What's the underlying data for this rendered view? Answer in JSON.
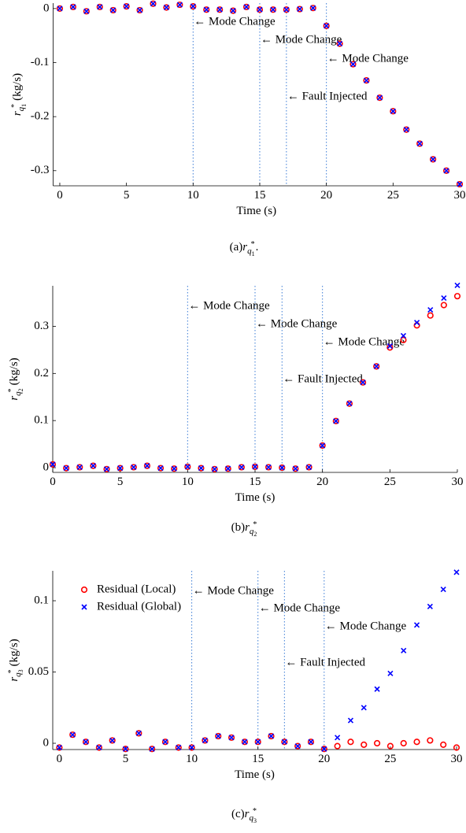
{
  "chart_data": [
    {
      "type": "scatter",
      "x": [
        0,
        1,
        2,
        3,
        4,
        5,
        6,
        7,
        8,
        9,
        10,
        11,
        12,
        13,
        14,
        15,
        16,
        17,
        18,
        19,
        20,
        21,
        22,
        23,
        24,
        25,
        26,
        27,
        28,
        29,
        30
      ],
      "series": [
        {
          "color": "#ff0000",
          "marker": "o",
          "values": [
            0,
            0.003,
            -0.005,
            0.003,
            -0.003,
            0.004,
            -0.003,
            0.009,
            0.002,
            0.007,
            0.004,
            -0.002,
            -0.002,
            -0.004,
            0.003,
            -0.002,
            -0.002,
            -0.002,
            -0.001,
            0.001,
            -0.032,
            -0.065,
            -0.103,
            -0.133,
            -0.165,
            -0.19,
            -0.224,
            -0.25,
            -0.279,
            -0.3,
            -0.325
          ]
        },
        {
          "color": "#0000ff",
          "marker": "x",
          "values": [
            0,
            0.003,
            -0.005,
            0.003,
            -0.003,
            0.004,
            -0.003,
            0.009,
            0.002,
            0.007,
            0.004,
            -0.002,
            -0.002,
            -0.004,
            0.003,
            -0.002,
            -0.002,
            -0.002,
            -0.001,
            0.001,
            -0.032,
            -0.065,
            -0.103,
            -0.133,
            -0.165,
            -0.19,
            -0.224,
            -0.25,
            -0.279,
            -0.3,
            -0.325
          ]
        }
      ],
      "xlim": [
        -0.5,
        30
      ],
      "ylim": [
        -0.328,
        0.01
      ],
      "xticks": [
        0,
        5,
        10,
        15,
        20,
        25,
        30
      ],
      "yticks": [
        0,
        -0.1,
        -0.2,
        -0.3
      ],
      "xlabel": "Time (s)",
      "ylabel": {
        "symbol": "r",
        "sub": "q",
        "index": "1",
        "sup": "*",
        "unit": "(kg/s)"
      },
      "caption": {
        "prefix": "(a)",
        "symbol": "r",
        "sub": "q",
        "index": "1",
        "sup": "*",
        "suffix": "."
      },
      "vlines": [
        10,
        15,
        17,
        20
      ],
      "vline_color": "#3a7bd5",
      "annotations": [
        "← Mode Change",
        "← Mode Change",
        "← Fault Injected",
        "← Mode Change"
      ]
    },
    {
      "type": "scatter",
      "x": [
        0,
        1,
        2,
        3,
        4,
        5,
        6,
        7,
        8,
        9,
        10,
        11,
        12,
        13,
        14,
        15,
        16,
        17,
        18,
        19,
        20,
        21,
        22,
        23,
        24,
        25,
        26,
        27,
        28,
        29,
        30
      ],
      "series": [
        {
          "color": "#ff0000",
          "marker": "o",
          "values": [
            0.007,
            -0.001,
            0.001,
            0.004,
            -0.003,
            -0.001,
            0.001,
            0.004,
            -0.001,
            -0.002,
            0.002,
            -0.001,
            -0.003,
            -0.002,
            0.001,
            0.002,
            0.001,
            0,
            -0.002,
            0.001,
            0.047,
            0.099,
            0.136,
            0.181,
            0.215,
            0.255,
            0.271,
            0.302,
            0.323,
            0.345,
            0.364
          ]
        },
        {
          "color": "#0000ff",
          "marker": "x",
          "values": [
            0.007,
            -0.001,
            0.001,
            0.004,
            -0.003,
            -0.001,
            0.001,
            0.004,
            -0.001,
            -0.002,
            0.002,
            -0.001,
            -0.003,
            -0.002,
            0.001,
            0.002,
            0.001,
            0,
            -0.002,
            0.001,
            0.047,
            0.099,
            0.136,
            0.181,
            0.215,
            0.258,
            0.28,
            0.308,
            0.335,
            0.36,
            0.387
          ]
        }
      ],
      "xlim": [
        0,
        30
      ],
      "ylim": [
        -0.01,
        0.386
      ],
      "xticks": [
        0,
        5,
        10,
        15,
        20,
        25,
        30
      ],
      "yticks": [
        0,
        0.1,
        0.2,
        0.3
      ],
      "xlabel": "Time (s)",
      "ylabel": {
        "symbol": "r",
        "sub": "q",
        "index": "2",
        "sup": "*",
        "unit": "(kg/s)"
      },
      "caption": {
        "prefix": "(b)",
        "symbol": "r",
        "sub": "q",
        "index": "2",
        "sup": "*"
      },
      "vlines": [
        10,
        15,
        17,
        20
      ],
      "vline_color": "#3a7bd5",
      "annotations": [
        "← Mode Change",
        "← Mode Change",
        "← Fault Injected",
        "← Mode Change"
      ]
    },
    {
      "type": "scatter",
      "x": [
        0,
        1,
        2,
        3,
        4,
        5,
        6,
        7,
        8,
        9,
        10,
        11,
        12,
        13,
        14,
        15,
        16,
        17,
        18,
        19,
        20,
        21,
        22,
        23,
        24,
        25,
        26,
        27,
        28,
        29,
        30
      ],
      "series": [
        {
          "name": "Residual (Local)",
          "color": "#ff0000",
          "marker": "o",
          "values": [
            -0.003,
            0.006,
            0.001,
            -0.003,
            0.002,
            -0.004,
            0.007,
            -0.004,
            0.001,
            -0.003,
            -0.003,
            0.002,
            0.005,
            0.004,
            0.001,
            0.001,
            0.005,
            0.001,
            -0.002,
            0.001,
            -0.004,
            -0.002,
            0.001,
            -0.001,
            0,
            -0.002,
            0,
            0.001,
            0.002,
            -0.001,
            -0.003
          ]
        },
        {
          "name": "Residual (Global)",
          "color": "#0000ff",
          "marker": "x",
          "values": [
            -0.003,
            0.006,
            0.001,
            -0.003,
            0.002,
            -0.004,
            0.007,
            -0.004,
            0.001,
            -0.003,
            -0.003,
            0.002,
            0.005,
            0.004,
            0.001,
            0.001,
            0.005,
            0.001,
            -0.002,
            0.001,
            -0.004,
            0.004,
            0.016,
            0.025,
            0.038,
            0.049,
            0.065,
            0.083,
            0.096,
            0.108,
            0.12
          ]
        }
      ],
      "xlim": [
        -0.5,
        30
      ],
      "ylim": [
        -0.0044,
        0.121
      ],
      "xticks": [
        0,
        5,
        10,
        15,
        20,
        25,
        30
      ],
      "yticks": [
        0,
        0.05,
        0.1
      ],
      "xlabel": "Time (s)",
      "ylabel": {
        "symbol": "r",
        "sub": "q",
        "index": "3",
        "sup": "*",
        "unit": "(kg/s)"
      },
      "caption": {
        "prefix": "(c)",
        "symbol": "r",
        "sub": "q",
        "index": "3",
        "sup": "*"
      },
      "vlines": [
        10,
        15,
        17,
        20
      ],
      "vline_color": "#3a7bd5",
      "legend": "upper left",
      "annotations": [
        "← Mode Change",
        "← Mode Change",
        "← Fault Injected",
        "← Mode Change"
      ]
    }
  ]
}
